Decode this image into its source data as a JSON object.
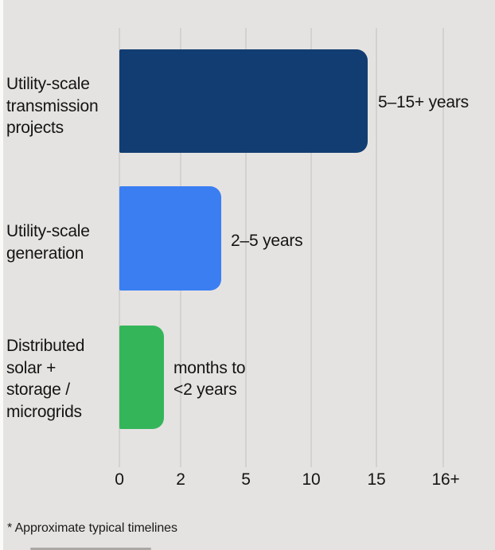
{
  "chart_data": {
    "type": "bar",
    "orientation": "horizontal",
    "categories": [
      "Utility-scale\ntransmission\nprojects",
      "Utility-scale\ngeneration",
      "Distributed\nsolar +\nstorage /\nmicrogrids"
    ],
    "values": [
      14.3,
      3.85,
      1.45
    ],
    "value_labels": [
      "5–15+ years",
      "2–5 years",
      "months to\n<2 years"
    ],
    "bar_colors": [
      "#113d72",
      "#3b7ef2",
      "#35b55a"
    ],
    "x_ticks": [
      "0",
      "2",
      "5",
      "10",
      "15",
      "16+"
    ],
    "x_tick_values": [
      0,
      2,
      5,
      10,
      15,
      16
    ],
    "xlabel": "",
    "ylabel": "",
    "grid": "vertical gridlines on, evenly spaced nonlinear scale",
    "legend": "none",
    "footnote": "* Approximate typical timelines"
  },
  "colors": {
    "background": "#e5e3e1",
    "gridline": "#d3d2d0",
    "text": "#141414"
  }
}
